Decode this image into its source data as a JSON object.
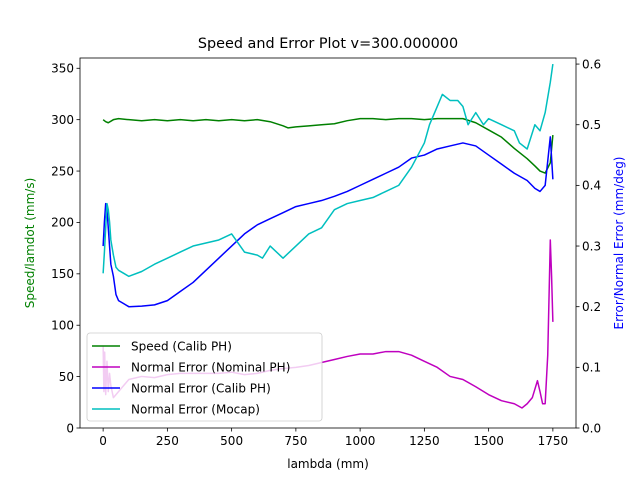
{
  "chart_data": {
    "type": "line",
    "title": "Speed and Error Plot v=300.000000",
    "xlabel": "lambda (mm)",
    "ylabel_left": "Speed/lamdot (mm/s)",
    "ylabel_right": "Error/Normal Error (mm/deg)",
    "xlim": [
      -90,
      1840
    ],
    "ylim_left": [
      0,
      360
    ],
    "ylim_right": [
      0,
      0.61
    ],
    "x_ticks": [
      "0",
      "250",
      "500",
      "750",
      "1000",
      "1250",
      "1500",
      "1750"
    ],
    "y_left_ticks": [
      "0",
      "50",
      "100",
      "150",
      "200",
      "250",
      "300",
      "350"
    ],
    "y_right_ticks": [
      "0.0",
      "0.1",
      "0.2",
      "0.3",
      "0.4",
      "0.5",
      "0.6"
    ],
    "legend_position": "lower-left",
    "series": [
      {
        "name": "Speed (Calib PH)",
        "axis": "left",
        "color": "#008000",
        "x": [
          0,
          10,
          20,
          40,
          60,
          100,
          150,
          200,
          250,
          300,
          350,
          400,
          450,
          500,
          550,
          600,
          650,
          700,
          720,
          750,
          800,
          850,
          900,
          950,
          1000,
          1050,
          1100,
          1150,
          1200,
          1250,
          1300,
          1350,
          1400,
          1450,
          1500,
          1550,
          1600,
          1650,
          1680,
          1700,
          1720,
          1740,
          1750
        ],
        "y": [
          300,
          298,
          297,
          300,
          301,
          300,
          299,
          300,
          299,
          300,
          299,
          300,
          299,
          300,
          299,
          300,
          298,
          294,
          292,
          293,
          294,
          295,
          296,
          299,
          301,
          301,
          300,
          301,
          301,
          300,
          301,
          301,
          301,
          297,
          290,
          283,
          272,
          262,
          255,
          250,
          248,
          258,
          285
        ]
      },
      {
        "name": "Normal Error (Nominal PH)",
        "axis": "right",
        "color": "#bf00bf",
        "x": [
          0,
          3,
          6,
          10,
          15,
          20,
          25,
          30,
          40,
          50,
          80,
          100,
          150,
          200,
          250,
          300,
          350,
          400,
          450,
          500,
          550,
          600,
          650,
          700,
          750,
          800,
          850,
          900,
          950,
          1000,
          1050,
          1100,
          1150,
          1200,
          1250,
          1300,
          1350,
          1400,
          1450,
          1500,
          1550,
          1600,
          1630,
          1650,
          1670,
          1690,
          1700,
          1710,
          1720,
          1730,
          1740,
          1745,
          1750
        ],
        "y": [
          0.135,
          0.06,
          0.125,
          0.055,
          0.11,
          0.06,
          0.09,
          0.07,
          0.05,
          0.055,
          0.07,
          0.08,
          0.085,
          0.083,
          0.088,
          0.09,
          0.09,
          0.09,
          0.09,
          0.092,
          0.088,
          0.09,
          0.095,
          0.098,
          0.1,
          0.103,
          0.108,
          0.113,
          0.118,
          0.122,
          0.122,
          0.126,
          0.126,
          0.12,
          0.11,
          0.1,
          0.085,
          0.08,
          0.068,
          0.055,
          0.045,
          0.04,
          0.033,
          0.04,
          0.05,
          0.078,
          0.06,
          0.04,
          0.04,
          0.12,
          0.31,
          0.25,
          0.175
        ]
      },
      {
        "name": "Normal Error (Calib PH)",
        "axis": "right",
        "color": "#0000ff",
        "x": [
          0,
          5,
          10,
          15,
          20,
          25,
          30,
          40,
          50,
          60,
          80,
          100,
          150,
          200,
          250,
          300,
          350,
          400,
          450,
          500,
          550,
          600,
          650,
          700,
          750,
          800,
          850,
          900,
          950,
          1000,
          1050,
          1100,
          1150,
          1200,
          1250,
          1300,
          1350,
          1400,
          1450,
          1500,
          1550,
          1600,
          1650,
          1680,
          1700,
          1720,
          1740,
          1750
        ],
        "y": [
          0.3,
          0.34,
          0.37,
          0.36,
          0.33,
          0.3,
          0.27,
          0.25,
          0.22,
          0.21,
          0.205,
          0.2,
          0.201,
          0.203,
          0.21,
          0.225,
          0.24,
          0.26,
          0.28,
          0.3,
          0.32,
          0.335,
          0.345,
          0.355,
          0.365,
          0.37,
          0.375,
          0.382,
          0.39,
          0.4,
          0.41,
          0.42,
          0.43,
          0.445,
          0.45,
          0.46,
          0.465,
          0.47,
          0.465,
          0.45,
          0.435,
          0.42,
          0.408,
          0.395,
          0.39,
          0.4,
          0.48,
          0.41
        ]
      },
      {
        "name": "Normal Error (Mocap)",
        "axis": "right",
        "color": "#00bfbf",
        "x": [
          0,
          5,
          10,
          15,
          20,
          25,
          30,
          40,
          50,
          60,
          80,
          100,
          150,
          200,
          250,
          300,
          350,
          400,
          450,
          500,
          550,
          600,
          620,
          650,
          700,
          750,
          800,
          850,
          900,
          950,
          1000,
          1050,
          1100,
          1150,
          1200,
          1250,
          1270,
          1300,
          1320,
          1350,
          1380,
          1400,
          1420,
          1450,
          1480,
          1500,
          1550,
          1600,
          1620,
          1650,
          1680,
          1700,
          1720,
          1740,
          1750
        ],
        "y": [
          0.255,
          0.29,
          0.33,
          0.37,
          0.36,
          0.34,
          0.31,
          0.285,
          0.265,
          0.26,
          0.255,
          0.25,
          0.258,
          0.27,
          0.28,
          0.29,
          0.3,
          0.305,
          0.31,
          0.32,
          0.29,
          0.285,
          0.28,
          0.3,
          0.28,
          0.3,
          0.32,
          0.33,
          0.36,
          0.37,
          0.375,
          0.38,
          0.39,
          0.4,
          0.43,
          0.47,
          0.5,
          0.53,
          0.55,
          0.54,
          0.54,
          0.53,
          0.5,
          0.52,
          0.5,
          0.51,
          0.5,
          0.49,
          0.47,
          0.46,
          0.5,
          0.49,
          0.52,
          0.57,
          0.6
        ]
      }
    ]
  }
}
